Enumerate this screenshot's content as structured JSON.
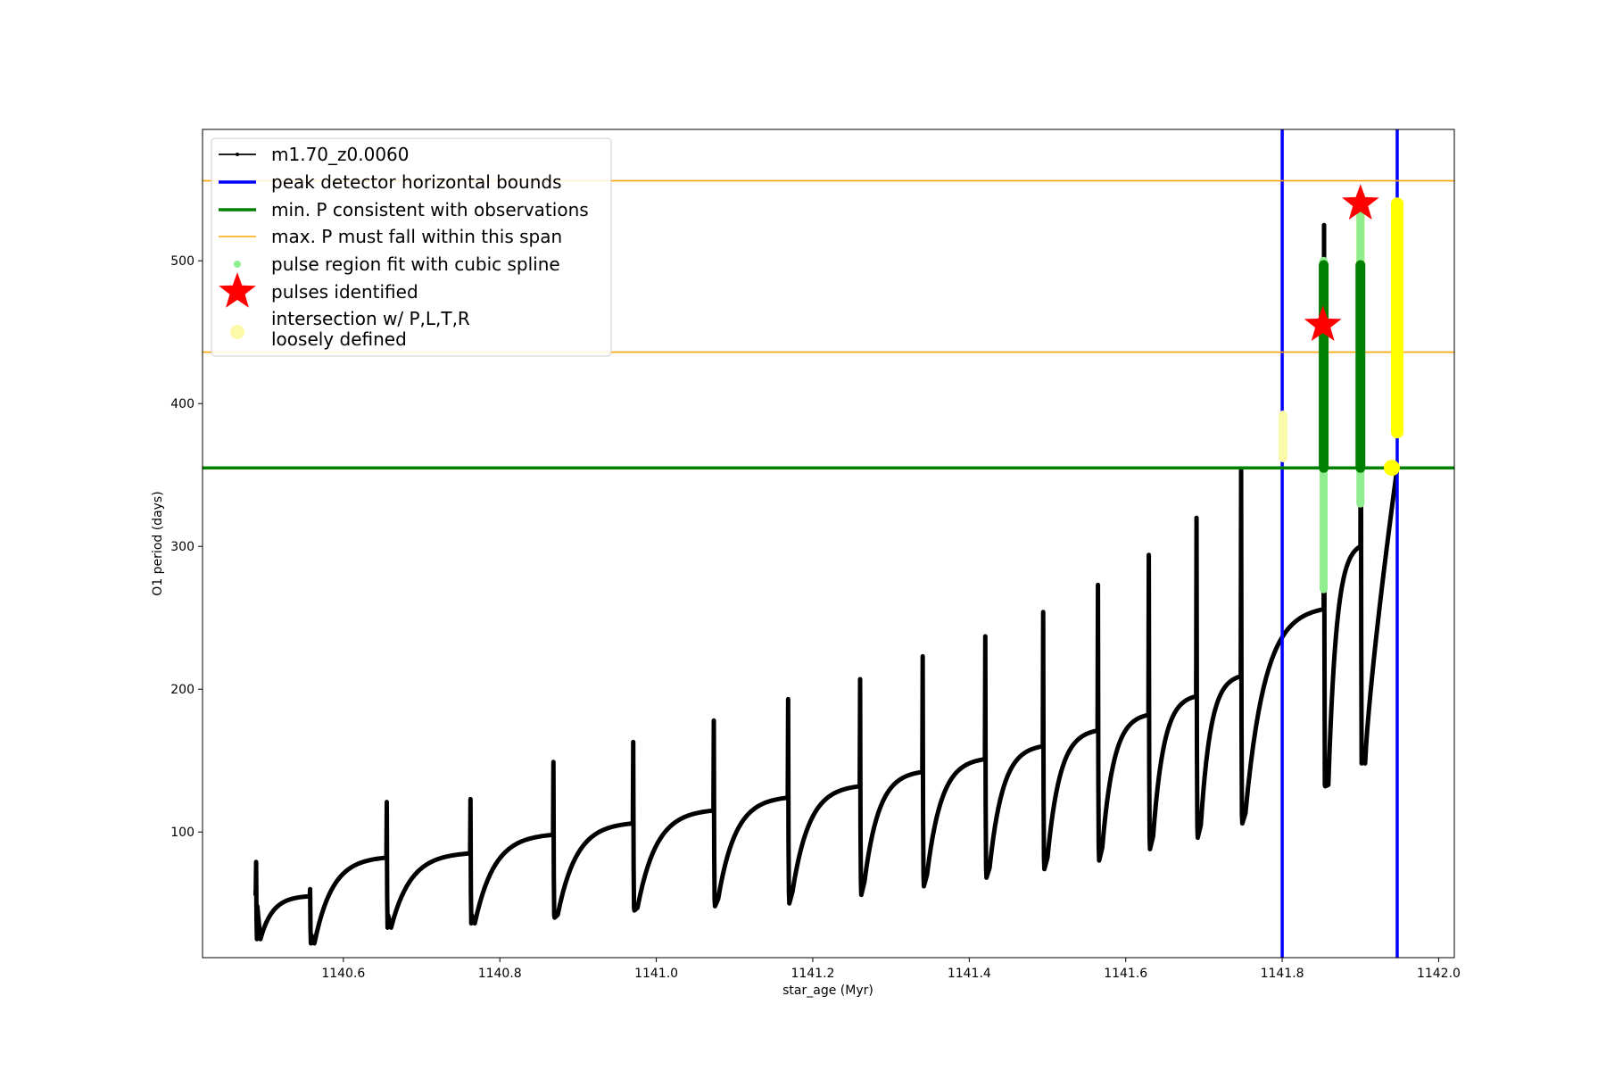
{
  "chart_data": {
    "type": "line",
    "title": "",
    "xlabel": "star_age (Myr)",
    "ylabel": "O1 period (days)",
    "xlim": [
      1140.42,
      1142.02
    ],
    "ylim": [
      12,
      592
    ],
    "xticks": [
      1140.6,
      1140.8,
      1141.0,
      1141.2,
      1141.4,
      1141.6,
      1141.8,
      1142.0
    ],
    "xtick_labels": [
      "1140.6",
      "1140.8",
      "1141.0",
      "1141.2",
      "1141.4",
      "1141.6",
      "1141.8",
      "1142.0"
    ],
    "yticks": [
      100,
      200,
      300,
      400,
      500
    ],
    "ytick_labels": [
      "100",
      "200",
      "300",
      "400",
      "500"
    ],
    "grid": false,
    "legend_position": "top-left",
    "legend": [
      {
        "key": "track",
        "label": "m1.70_z0.0060"
      },
      {
        "key": "bounds",
        "label": "peak detector horizontal bounds"
      },
      {
        "key": "minp",
        "label": "min. P consistent with observations"
      },
      {
        "key": "maxp",
        "label": "max. P must fall within this span"
      },
      {
        "key": "spline",
        "label": "pulse region fit with cubic spline"
      },
      {
        "key": "pulses",
        "label": "pulses identified"
      },
      {
        "key": "intersection",
        "label": "intersection w/ P,L,T,R",
        "label2": "loosely defined"
      }
    ],
    "colors": {
      "track": "#000000",
      "bounds": "#0000ff",
      "minp": "#008000",
      "maxp": "#ffa500",
      "spline": "#90ee90",
      "pulse_fill": "#008000",
      "pulses": "#ff0000",
      "intersection": "#ffff00",
      "intersection_faded": "#fafaa8"
    },
    "vertical_bounds_x": [
      1141.8,
      1141.947
    ],
    "min_period": 355,
    "max_period_span": [
      436,
      556
    ],
    "pulses": [
      {
        "age": 1140.488,
        "pre": 57,
        "peak": 79,
        "trough": 25,
        "next_peak": 48
      },
      {
        "age": 1140.557,
        "pre": 55,
        "peak": 60,
        "trough": 22,
        "next_peak": 28
      },
      {
        "age": 1140.655,
        "pre": 82,
        "peak": 121,
        "trough": 33,
        "next_peak": 42
      },
      {
        "age": 1140.762,
        "pre": 85,
        "peak": 123,
        "trough": 36,
        "next_peak": 42
      },
      {
        "age": 1140.868,
        "pre": 98,
        "peak": 149,
        "trough": 42,
        "next_peak": 40
      },
      {
        "age": 1140.97,
        "pre": 106,
        "peak": 163,
        "trough": 47,
        "next_peak": 45
      },
      {
        "age": 1141.073,
        "pre": 115,
        "peak": 178,
        "trough": 53,
        "next_peak": 48
      },
      {
        "age": 1141.168,
        "pre": 124,
        "peak": 193,
        "trough": 58,
        "next_peak": 50
      },
      {
        "age": 1141.26,
        "pre": 132,
        "peak": 207,
        "trough": 65,
        "next_peak": 56
      },
      {
        "age": 1141.34,
        "pre": 142,
        "peak": 223,
        "trough": 70,
        "next_peak": 62
      },
      {
        "age": 1141.42,
        "pre": 151,
        "peak": 237,
        "trough": 75,
        "next_peak": 68
      },
      {
        "age": 1141.494,
        "pre": 160,
        "peak": 254,
        "trough": 82,
        "next_peak": 74
      },
      {
        "age": 1141.564,
        "pre": 171,
        "peak": 273,
        "trough": 89,
        "next_peak": 80
      },
      {
        "age": 1141.629,
        "pre": 182,
        "peak": 294,
        "trough": 97,
        "next_peak": 88
      },
      {
        "age": 1141.69,
        "pre": 195,
        "peak": 320,
        "trough": 105,
        "next_peak": 96
      },
      {
        "age": 1141.747,
        "pre": 209,
        "peak": 354,
        "trough": 113,
        "next_peak": 106
      },
      {
        "age": 1141.853,
        "pre": 256,
        "peak": 525,
        "trough": 133,
        "next_peak": 132
      },
      {
        "age": 1141.9,
        "pre": 300,
        "peak": 520,
        "trough": 148,
        "next_peak": 152
      }
    ],
    "track_start": {
      "age": 1140.485,
      "value": 57
    },
    "track_end": {
      "age": 1141.947,
      "value": 355
    },
    "pulse_region_segments": [
      {
        "age": 1141.853,
        "from": 270,
        "to": 500
      },
      {
        "age": 1141.9,
        "from": 330,
        "to": 540
      }
    ],
    "pulses_identified": [
      {
        "age": 1141.852,
        "value": 455
      },
      {
        "age": 1141.9,
        "value": 540
      }
    ],
    "intersections": [
      {
        "age": 1141.947,
        "value": 355,
        "from": 355,
        "to": 540,
        "style": "solid"
      },
      {
        "age": 1141.801,
        "value": 392,
        "from": 362,
        "to": 392,
        "style": "faded"
      },
      {
        "age": 1141.9,
        "value": 530,
        "from": 490,
        "to": 535,
        "style": "faded"
      }
    ]
  }
}
